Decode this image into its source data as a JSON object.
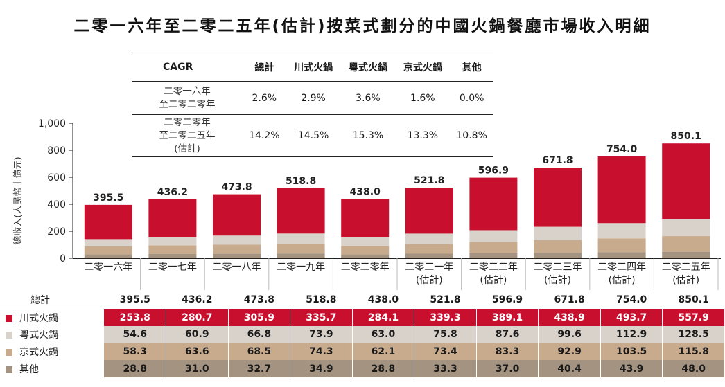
{
  "title": "二零一六年至二零二五年(估計)按菜式劃分的中國火鍋餐廳市場收入明細",
  "chart_data": {
    "type": "bar",
    "stacked": true,
    "ylabel": "總收入(人民幣十億元)",
    "ylim": [
      0,
      1000
    ],
    "yticks": [
      "0",
      "200",
      "400",
      "600",
      "800",
      "1,000"
    ],
    "categories": [
      [
        "二零一六年"
      ],
      [
        "二零一七年"
      ],
      [
        "二零一八年"
      ],
      [
        "二零一九年"
      ],
      [
        "二零二零年"
      ],
      [
        "二零二一年",
        "(估計)"
      ],
      [
        "二零二二年",
        "(估計)"
      ],
      [
        "二零二三年",
        "(估計)"
      ],
      [
        "二零二四年",
        "(估計)"
      ],
      [
        "二零二五年",
        "(估計)"
      ]
    ],
    "totals_label": "總計",
    "totals": [
      395.5,
      436.2,
      473.8,
      518.8,
      438.0,
      521.8,
      596.9,
      671.8,
      754.0,
      850.1
    ],
    "total_labels": [
      "395.5",
      "436.2",
      "473.8",
      "518.8",
      "438.0",
      "521.8",
      "596.9",
      "671.8",
      "754.0",
      "850.1"
    ],
    "series": [
      {
        "name": "其他",
        "color": "#a39380",
        "values": [
          28.8,
          31.0,
          32.7,
          34.9,
          28.8,
          33.3,
          37.0,
          40.4,
          43.9,
          48.0
        ],
        "labels": [
          "28.8",
          "31.0",
          "32.7",
          "34.9",
          "28.8",
          "33.3",
          "37.0",
          "40.4",
          "43.9",
          "48.0"
        ]
      },
      {
        "name": "京式火鍋",
        "color": "#c8aa8d",
        "values": [
          58.3,
          63.6,
          68.5,
          74.3,
          62.1,
          73.4,
          83.3,
          92.9,
          103.5,
          115.8
        ],
        "labels": [
          "58.3",
          "63.6",
          "68.5",
          "74.3",
          "62.1",
          "73.4",
          "83.3",
          "92.9",
          "103.5",
          "115.8"
        ]
      },
      {
        "name": "粵式火鍋",
        "color": "#d9d2ca",
        "values": [
          54.6,
          60.9,
          66.8,
          73.9,
          63.0,
          75.8,
          87.6,
          99.6,
          112.9,
          128.5
        ],
        "labels": [
          "54.6",
          "60.9",
          "66.8",
          "73.9",
          "63.0",
          "75.8",
          "87.6",
          "99.6",
          "112.9",
          "128.5"
        ]
      },
      {
        "name": "川式火鍋",
        "color": "#c8102e",
        "values": [
          253.8,
          280.7,
          305.9,
          335.7,
          284.1,
          339.3,
          389.1,
          438.9,
          493.7,
          557.9
        ],
        "labels": [
          "253.8",
          "280.7",
          "305.9",
          "335.7",
          "284.1",
          "339.3",
          "389.1",
          "438.9",
          "493.7",
          "557.9"
        ]
      }
    ],
    "grid": false
  },
  "cagr": {
    "header": [
      "CAGR",
      "總計",
      "川式火鍋",
      "粵式火鍋",
      "京式火鍋",
      "其他"
    ],
    "rows": [
      {
        "label": [
          "二零一六年",
          "至二零二零年"
        ],
        "values": [
          "2.6%",
          "2.9%",
          "3.6%",
          "1.6%",
          "0.0%"
        ]
      },
      {
        "label": [
          "二零二零年",
          "至二零二五年",
          "(估計)"
        ],
        "values": [
          "14.2%",
          "14.5%",
          "15.3%",
          "13.3%",
          "10.8%"
        ]
      }
    ]
  }
}
